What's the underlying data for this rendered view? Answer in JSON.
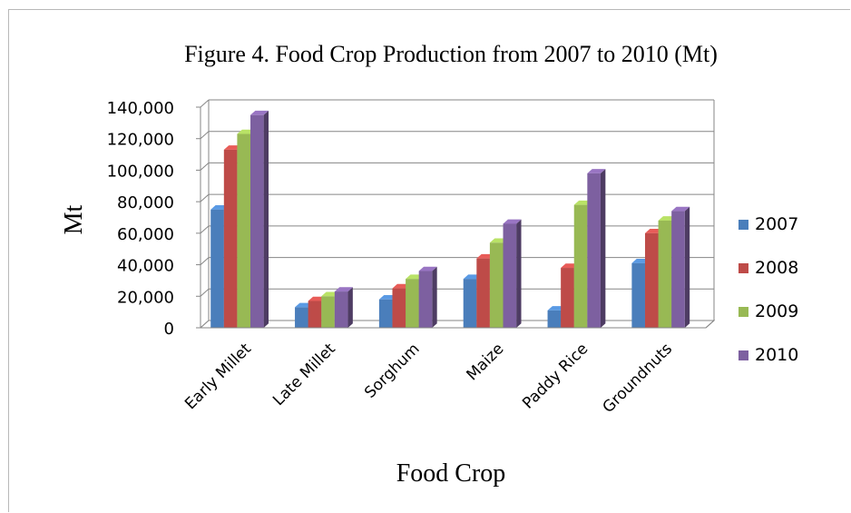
{
  "chart_data": {
    "type": "bar",
    "title": "Figure 4. Food Crop Production from 2007 to 2010 (Mt)",
    "xlabel": "Food Crop",
    "ylabel": "Mt",
    "categories": [
      "Early Millet",
      "Late Millet",
      "Sorghum",
      "Maize",
      "Paddy Rice",
      "Groundnuts"
    ],
    "series": [
      {
        "name": "2007",
        "color": "#4a7ebb",
        "values": [
          75000,
          13000,
          18000,
          31000,
          11000,
          41000
        ]
      },
      {
        "name": "2008",
        "color": "#be4b48",
        "values": [
          113000,
          17000,
          25000,
          44000,
          38000,
          60000
        ]
      },
      {
        "name": "2009",
        "color": "#98b954",
        "values": [
          123000,
          20000,
          31000,
          54000,
          78000,
          68000
        ]
      },
      {
        "name": "2010",
        "color": "#7d60a0",
        "values": [
          135000,
          23000,
          36000,
          66000,
          98000,
          74000
        ]
      }
    ],
    "ylim": [
      0,
      140000
    ],
    "yticks": [
      "0",
      "20,000",
      "40,000",
      "60,000",
      "80,000",
      "100,000",
      "120,000",
      "140,000"
    ],
    "grid": true,
    "legend": "right"
  }
}
